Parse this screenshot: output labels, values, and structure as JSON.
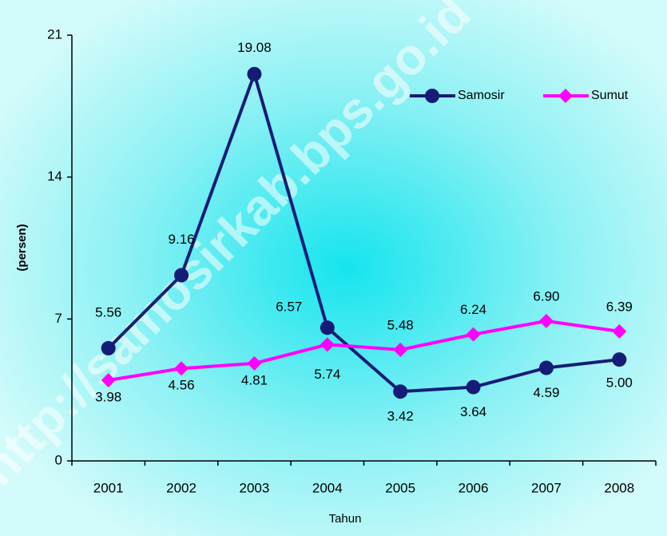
{
  "watermark": "http://samosirkab.bps.go.id",
  "chart_data": {
    "type": "line",
    "x_label": "Tahun",
    "y_label": "(persen)",
    "categories": [
      "2001",
      "2002",
      "2003",
      "2004",
      "2005",
      "2006",
      "2007",
      "2008"
    ],
    "series": [
      {
        "name": "Samosir",
        "color": "#141c78",
        "marker": "circle",
        "values": [
          5.56,
          9.16,
          19.08,
          6.57,
          3.42,
          3.64,
          4.59,
          5.0
        ],
        "value_labels": [
          "5.56",
          "9.16",
          "19.08",
          "6.57",
          "3.42",
          "3.64",
          "4.59",
          "5.00"
        ]
      },
      {
        "name": "Sumut",
        "color": "#ff00ff",
        "marker": "diamond",
        "values": [
          3.98,
          4.56,
          4.81,
          5.74,
          5.48,
          6.24,
          6.9,
          6.39
        ],
        "value_labels": [
          "3.98",
          "4.56",
          "4.81",
          "5.74",
          "5.48",
          "6.24",
          "6.90",
          "6.39"
        ]
      }
    ],
    "ylim": [
      0,
      21
    ],
    "yticks": [
      0,
      7,
      14,
      21
    ],
    "legend": "top-right"
  }
}
